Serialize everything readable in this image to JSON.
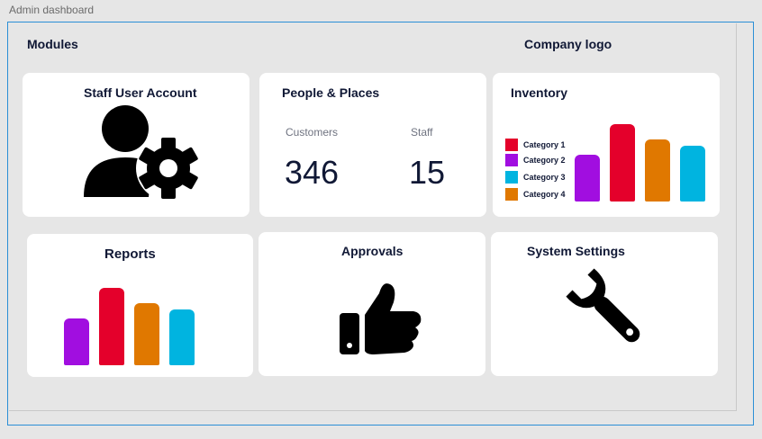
{
  "window": {
    "title": "Admin dashboard"
  },
  "header": {
    "modules_label": "Modules",
    "logo_label": "Company logo"
  },
  "cards": {
    "staff": {
      "title": "Staff User Account",
      "icon": "user-gear-icon"
    },
    "people": {
      "title": "People & Places",
      "customers_label": "Customers",
      "customers_value": "346",
      "staff_label": "Staff",
      "staff_value": "15"
    },
    "inventory": {
      "title": "Inventory",
      "legend": [
        "Category 1",
        "Category 2",
        "Category 3",
        "Category 4"
      ]
    },
    "reports": {
      "title": "Reports"
    },
    "approvals": {
      "title": "Approvals",
      "icon": "thumbs-up-icon"
    },
    "settings": {
      "title": "System Settings",
      "icon": "wrench-icon"
    }
  },
  "colors": {
    "category_1": "#e4002b",
    "category_2": "#a10ee0",
    "category_3": "#00b4e0",
    "category_4": "#e07800"
  },
  "chart_data": [
    {
      "type": "bar",
      "categories": [
        "Category 2",
        "Category 1",
        "Category 4",
        "Category 3"
      ],
      "values": [
        52,
        86,
        69,
        62
      ],
      "ylim": [
        0,
        100
      ],
      "legend": [
        "Category 1",
        "Category 2",
        "Category 3",
        "Category 4"
      ],
      "legend_placement": "left",
      "grid": false
    },
    {
      "type": "bar",
      "categories": [
        "Category 2",
        "Category 1",
        "Category 4",
        "Category 3"
      ],
      "values": [
        52,
        86,
        69,
        62
      ],
      "ylim": [
        0,
        100
      ],
      "grid": false
    }
  ]
}
